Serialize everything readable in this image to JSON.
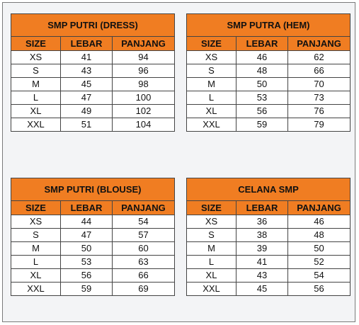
{
  "headers": [
    "SIZE",
    "LEBAR",
    "PANJANG"
  ],
  "tables": [
    {
      "title": "SMP PUTRI (DRESS)",
      "rows": [
        [
          "XS",
          "41",
          "94"
        ],
        [
          "S",
          "43",
          "96"
        ],
        [
          "M",
          "45",
          "98"
        ],
        [
          "L",
          "47",
          "100"
        ],
        [
          "XL",
          "49",
          "102"
        ],
        [
          "XXL",
          "51",
          "104"
        ]
      ]
    },
    {
      "title": "SMP PUTRA (HEM)",
      "rows": [
        [
          "XS",
          "46",
          "62"
        ],
        [
          "S",
          "48",
          "66"
        ],
        [
          "M",
          "50",
          "70"
        ],
        [
          "L",
          "53",
          "73"
        ],
        [
          "XL",
          "56",
          "76"
        ],
        [
          "XXL",
          "59",
          "79"
        ]
      ]
    },
    {
      "title": "SMP PUTRI (BLOUSE)",
      "rows": [
        [
          "XS",
          "44",
          "54"
        ],
        [
          "S",
          "47",
          "57"
        ],
        [
          "M",
          "50",
          "60"
        ],
        [
          "L",
          "53",
          "63"
        ],
        [
          "XL",
          "56",
          "66"
        ],
        [
          "XXL",
          "59",
          "69"
        ]
      ]
    },
    {
      "title": "CELANA SMP",
      "rows": [
        [
          "XS",
          "36",
          "46"
        ],
        [
          "S",
          "38",
          "48"
        ],
        [
          "M",
          "39",
          "50"
        ],
        [
          "L",
          "41",
          "52"
        ],
        [
          "XL",
          "43",
          "54"
        ],
        [
          "XXL",
          "45",
          "56"
        ]
      ]
    }
  ],
  "colors": {
    "header_orange": "#f07d22",
    "border": "#444444",
    "frame_background": "#f3f4f6"
  }
}
